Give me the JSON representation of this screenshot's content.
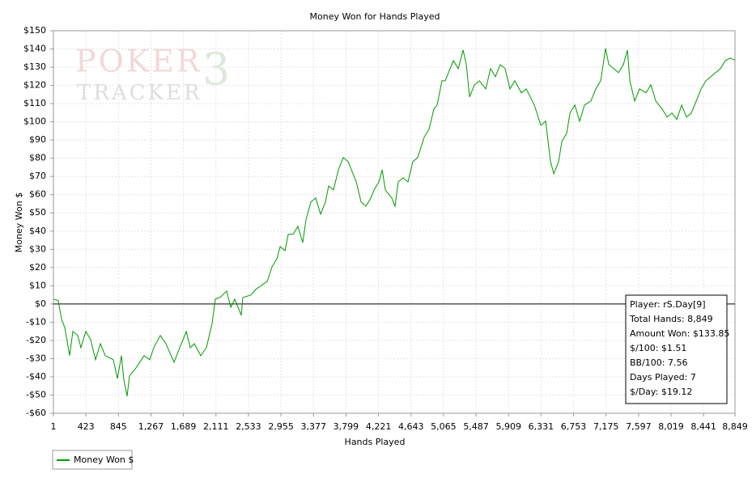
{
  "chart_data": {
    "type": "line",
    "title": "Money Won for Hands Played",
    "x_label": "Hands Played",
    "y_label": "Money Won $",
    "watermark": [
      "POKER",
      "3",
      "TRACKER"
    ],
    "grid": true,
    "legend": "bottom-left",
    "xlim": [
      1,
      8849
    ],
    "ylim": [
      -60,
      150
    ],
    "xticks": [
      1,
      423,
      845,
      {
        "value": 1267,
        "label": "1,267"
      },
      {
        "value": 1689,
        "label": "1,689"
      },
      {
        "value": 2111,
        "label": "2,111"
      },
      {
        "value": 2533,
        "label": "2,533"
      },
      {
        "value": 2955,
        "label": "2,955"
      },
      {
        "value": 3377,
        "label": "3,377"
      },
      {
        "value": 3799,
        "label": "3,799"
      },
      {
        "value": 4221,
        "label": "4,221"
      },
      {
        "value": 4643,
        "label": "4,643"
      },
      {
        "value": 5065,
        "label": "5,065"
      },
      {
        "value": 5487,
        "label": "5,487"
      },
      {
        "value": 5909,
        "label": "5,909"
      },
      {
        "value": 6331,
        "label": "6,331"
      },
      {
        "value": 6753,
        "label": "6,753"
      },
      {
        "value": 7175,
        "label": "7,175"
      },
      {
        "value": 7597,
        "label": "7,597"
      },
      {
        "value": 8019,
        "label": "8,019"
      },
      {
        "value": 8441,
        "label": "8,441"
      },
      {
        "value": 8849,
        "label": "8,849"
      }
    ],
    "yticks": [
      {
        "value": -60,
        "label": "-$60"
      },
      {
        "value": -50,
        "label": "-$50"
      },
      {
        "value": -40,
        "label": "-$40"
      },
      {
        "value": -30,
        "label": "-$30"
      },
      {
        "value": -20,
        "label": "-$20"
      },
      {
        "value": -10,
        "label": "-$10"
      },
      {
        "value": 0,
        "label": "$0"
      },
      {
        "value": 10,
        "label": "$10"
      },
      {
        "value": 20,
        "label": "$20"
      },
      {
        "value": 30,
        "label": "$30"
      },
      {
        "value": 40,
        "label": "$40"
      },
      {
        "value": 50,
        "label": "$50"
      },
      {
        "value": 60,
        "label": "$60"
      },
      {
        "value": 70,
        "label": "$70"
      },
      {
        "value": 80,
        "label": "$80"
      },
      {
        "value": 90,
        "label": "$90"
      },
      {
        "value": 100,
        "label": "$100"
      },
      {
        "value": 110,
        "label": "$110"
      },
      {
        "value": 120,
        "label": "$120"
      },
      {
        "value": 130,
        "label": "$130"
      },
      {
        "value": 140,
        "label": "$140"
      },
      {
        "value": 150,
        "label": "$150"
      }
    ],
    "x": [
      1,
      64,
      106,
      148,
      211,
      253,
      316,
      358,
      421,
      484,
      547,
      610,
      674,
      779,
      831,
      884,
      915,
      957,
      989,
      1073,
      1178,
      1252,
      1304,
      1388,
      1462,
      1567,
      1640,
      1725,
      1777,
      1830,
      1914,
      1987,
      2061,
      2103,
      2166,
      2250,
      2303,
      2355,
      2439,
      2460,
      2565,
      2628,
      2671,
      2776,
      2839,
      2902,
      2944,
      3007,
      3049,
      3112,
      3175,
      3238,
      3280,
      3343,
      3406,
      3469,
      3532,
      3574,
      3637,
      3700,
      3764,
      3827,
      3890,
      3932,
      3995,
      4058,
      4121,
      4163,
      4226,
      4268,
      4310,
      4394,
      4436,
      4478,
      4541,
      4604,
      4667,
      4730,
      4814,
      4877,
      4940,
      4982,
      5045,
      5087,
      5151,
      5193,
      5256,
      5319,
      5361,
      5403,
      5466,
      5529,
      5613,
      5676,
      5739,
      5802,
      5865,
      5928,
      5991,
      6076,
      6139,
      6244,
      6328,
      6391,
      6454,
      6496,
      6559,
      6601,
      6664,
      6706,
      6769,
      6832,
      6895,
      6979,
      7042,
      7106,
      7169,
      7211,
      7274,
      7337,
      7400,
      7452,
      7484,
      7547,
      7610,
      7694,
      7757,
      7820,
      7904,
      7967,
      8030,
      8093,
      8157,
      8220,
      8283,
      8346,
      8409,
      8472,
      8535,
      8598,
      8661,
      8724,
      8787,
      8849
    ],
    "series": [
      {
        "name": "Money Won $",
        "color": "#009900",
        "values": [
          2.7,
          1.8,
          -8.4,
          -12.9,
          -28.4,
          -15.1,
          -17.3,
          -24,
          -15.1,
          -19.5,
          -30.6,
          -21.8,
          -28.4,
          -30.6,
          -40.9,
          -28.4,
          -41.7,
          -50.6,
          -39.5,
          -35.1,
          -28.4,
          -30.6,
          -24,
          -17.3,
          -21.8,
          -32,
          -24,
          -15.1,
          -24,
          -21.8,
          -28.4,
          -24,
          -10.7,
          2.7,
          3.6,
          7.1,
          -1.8,
          2.7,
          -6.2,
          3.6,
          4.9,
          8,
          9.3,
          12.4,
          20.4,
          24.9,
          31.5,
          29.3,
          38.2,
          38.2,
          42.6,
          33.7,
          46.2,
          55.9,
          58.2,
          49.3,
          55.9,
          64.8,
          62.6,
          73.7,
          80.4,
          78.1,
          71.5,
          67,
          55.9,
          53.7,
          58.2,
          62.6,
          67,
          73.7,
          62.6,
          58.2,
          53.7,
          67,
          69.3,
          67,
          78.1,
          80.4,
          91.5,
          95.9,
          107,
          109.2,
          122.5,
          122.5,
          129.2,
          133.6,
          129.2,
          139.4,
          131.4,
          113.7,
          120.3,
          122.5,
          118.1,
          129.2,
          124.8,
          131.4,
          129.2,
          118.1,
          122.5,
          115.9,
          118.1,
          109.2,
          98.1,
          100.3,
          78.1,
          71.5,
          78.1,
          89.2,
          93.7,
          104.8,
          109.2,
          100.3,
          109.2,
          111.4,
          118.1,
          122.5,
          140.3,
          131.4,
          129.2,
          127,
          131.4,
          139.4,
          122.5,
          111.4,
          118.1,
          115.9,
          120.3,
          111.4,
          107,
          102.6,
          104.8,
          101.3,
          109.2,
          102.6,
          104.8,
          111.4,
          118.1,
          122.5,
          124.8,
          127,
          129.2,
          133.6,
          135,
          133.85
        ]
      }
    ],
    "info": [
      "Player: rS.Day[9]",
      "Total Hands: 8,849",
      "Amount Won: $133.85",
      "$/100: $1.51",
      "BB/100: 7.56",
      "Days Played: 7",
      "$/Day: $19.12"
    ]
  }
}
